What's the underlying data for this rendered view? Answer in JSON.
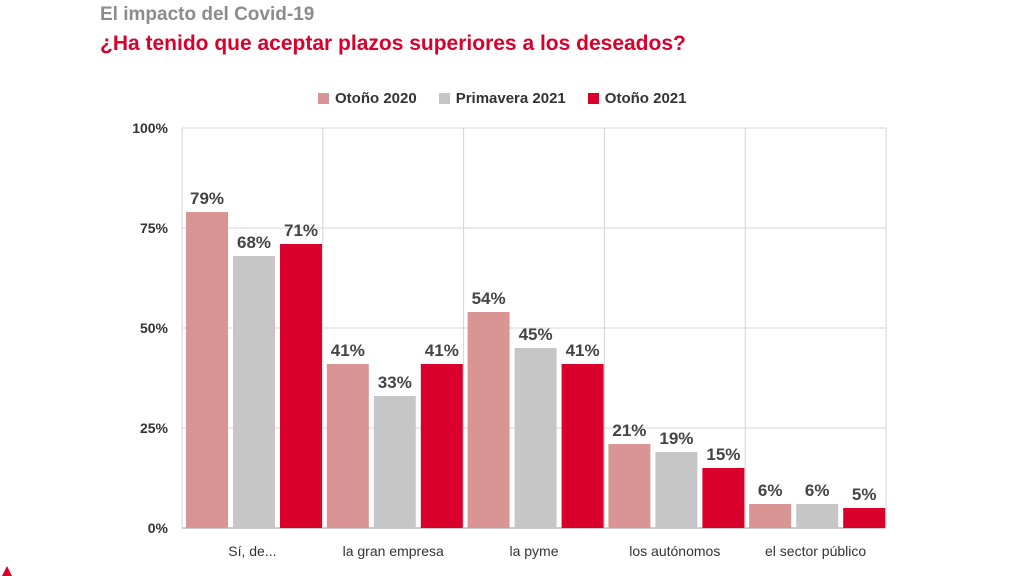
{
  "header": {
    "supertitle": "El impacto del Covid-19",
    "title": "¿Ha tenido que aceptar plazos superiores a los deseados?"
  },
  "chart_data": {
    "type": "bar",
    "title": "¿Ha tenido que aceptar plazos superiores a los deseados?",
    "categories": [
      "Sí, de...",
      "la gran empresa",
      "la pyme",
      "los autónomos",
      "el sector público"
    ],
    "series": [
      {
        "name": "Otoño 2020",
        "color": "#d99494",
        "values": [
          79,
          41,
          54,
          21,
          6
        ]
      },
      {
        "name": "Primavera 2021",
        "color": "#c6c6c6",
        "values": [
          68,
          33,
          45,
          19,
          6
        ]
      },
      {
        "name": "Otoño 2021",
        "color": "#d9002b",
        "values": [
          71,
          41,
          41,
          15,
          5
        ]
      }
    ],
    "yticks": [
      0,
      25,
      50,
      75,
      100
    ],
    "ytick_labels": [
      "0%",
      "25%",
      "50%",
      "75%",
      "100%"
    ],
    "ylim": [
      0,
      100
    ],
    "value_suffix": "%",
    "grid": true,
    "legend_position": "top"
  }
}
